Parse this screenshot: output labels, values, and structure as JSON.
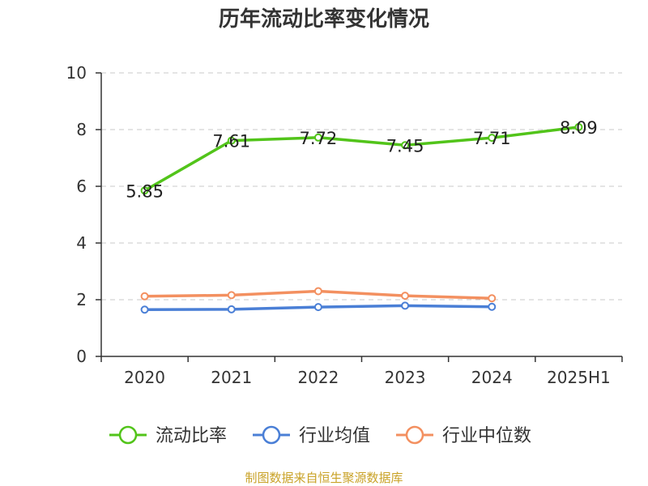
{
  "chart_data": {
    "type": "line",
    "title": "历年流动比率变化情况",
    "categories": [
      "2020",
      "2021",
      "2022",
      "2023",
      "2024",
      "2025H1"
    ],
    "ylim": [
      0,
      10
    ],
    "yticks": [
      0,
      2,
      4,
      6,
      8,
      10
    ],
    "grid": true,
    "legend_position": "bottom",
    "series": [
      {
        "name": "流动比率",
        "color": "#52c41a",
        "values": [
          5.85,
          7.61,
          7.72,
          7.45,
          7.71,
          8.09
        ],
        "labels": [
          "5.85",
          "7.61",
          "7.72",
          "7.45",
          "7.71",
          "8.09"
        ],
        "show_labels": true
      },
      {
        "name": "行业均值",
        "color": "#4a7fd6",
        "values": [
          1.65,
          1.66,
          1.74,
          1.79,
          1.75,
          null
        ],
        "show_labels": false
      },
      {
        "name": "行业中位数",
        "color": "#f39060",
        "values": [
          2.12,
          2.16,
          2.3,
          2.14,
          2.05,
          null
        ],
        "show_labels": false
      }
    ]
  },
  "source": "制图数据来自恒生聚源数据库"
}
